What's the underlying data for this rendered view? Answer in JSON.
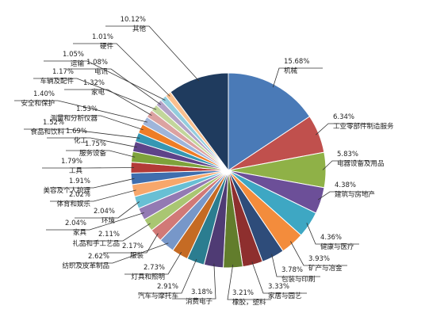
{
  "chart_data": {
    "type": "pie",
    "slices": [
      {
        "label": "机械",
        "value": 15.68,
        "pct": "15.68%",
        "color": "#4a7ab7"
      },
      {
        "label": "工业零部件制造服务",
        "value": 6.34,
        "pct": "6.34%",
        "color": "#c0504d"
      },
      {
        "label": "电器设备及用品",
        "value": 5.83,
        "pct": "5.83%",
        "color": "#8fb147"
      },
      {
        "label": "建筑与房地产",
        "value": 4.38,
        "pct": "4.38%",
        "color": "#6c4f98"
      },
      {
        "label": "健康与医疗",
        "value": 4.36,
        "pct": "4.36%",
        "color": "#3ea7c3"
      },
      {
        "label": "矿产与冶金",
        "value": 3.93,
        "pct": "3.93%",
        "color": "#f38c3c"
      },
      {
        "label": "包装与印刷",
        "value": 3.78,
        "pct": "3.78%",
        "color": "#2e4c7a"
      },
      {
        "label": "家居与园艺",
        "value": 3.33,
        "pct": "3.33%",
        "color": "#8e2f2e"
      },
      {
        "label": "橡胶，塑料",
        "value": 3.21,
        "pct": "3.21%",
        "color": "#627d2c"
      },
      {
        "label": "消费电子",
        "value": 3.18,
        "pct": "3.18%",
        "color": "#4f3b74"
      },
      {
        "label": "汽车与摩托车",
        "value": 2.91,
        "pct": "2.91%",
        "color": "#2b7d90"
      },
      {
        "label": "灯具和照明",
        "value": 2.73,
        "pct": "2.73%",
        "color": "#c56b24"
      },
      {
        "label": "纺织及皮革制品",
        "value": 2.62,
        "pct": "2.62%",
        "color": "#7797c9"
      },
      {
        "label": "服装",
        "value": 2.17,
        "pct": "2.17%",
        "color": "#d17977"
      },
      {
        "label": "礼品和手工艺品",
        "value": 2.11,
        "pct": "2.11%",
        "color": "#a9c672"
      },
      {
        "label": "家具",
        "value": 2.04,
        "pct": "2.04%",
        "color": "#937ab3"
      },
      {
        "label": "环境",
        "value": 2.04,
        "pct": "2.04%",
        "color": "#68bfd4"
      },
      {
        "label": "体育和娱乐",
        "value": 2.02,
        "pct": "2.02%",
        "color": "#f7a76b"
      },
      {
        "label": "美容及个人护理",
        "value": 1.91,
        "pct": "1.91%",
        "color": "#3f6eae"
      },
      {
        "label": "工具",
        "value": 1.79,
        "pct": "1.79%",
        "color": "#b33a37"
      },
      {
        "label": "服务设备",
        "value": 1.75,
        "pct": "1.75%",
        "color": "#7ea23b"
      },
      {
        "label": "化工",
        "value": 1.69,
        "pct": "1.69%",
        "color": "#5e4389"
      },
      {
        "label": "食品和饮料",
        "value": 1.52,
        "pct": "1.52%",
        "color": "#3597b3"
      },
      {
        "label": "测量和分析仪器",
        "value": 1.53,
        "pct": "1.53%",
        "color": "#ee7d27"
      },
      {
        "label": "安全和保护",
        "value": 1.4,
        "pct": "1.40%",
        "color": "#9fb5da"
      },
      {
        "label": "家电",
        "value": 1.32,
        "pct": "1.32%",
        "color": "#dca2a1"
      },
      {
        "label": "车辆及配件",
        "value": 1.17,
        "pct": "1.17%",
        "color": "#c2d69b"
      },
      {
        "label": "电讯",
        "value": 1.08,
        "pct": "1.08%",
        "color": "#b3a2c7"
      },
      {
        "label": "运输",
        "value": 1.05,
        "pct": "1.05%",
        "color": "#93cddd"
      },
      {
        "label": "硬件",
        "value": 1.01,
        "pct": "1.01%",
        "color": "#fac08f"
      },
      {
        "label": "其他",
        "value": 10.12,
        "pct": "10.12%",
        "color": "#1f3b5e"
      }
    ]
  }
}
